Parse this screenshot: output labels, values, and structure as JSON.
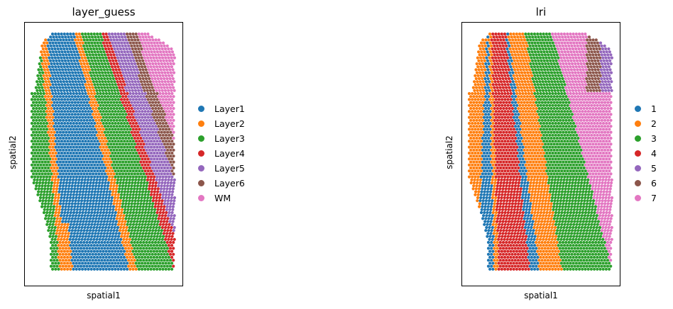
{
  "panels": [
    {
      "title": "layer_guess",
      "xlabel": "spatial1",
      "ylabel": "spatial2",
      "legend": [
        {
          "label": "Layer1",
          "color": "#1f77b4"
        },
        {
          "label": "Layer2",
          "color": "#ff7f0e"
        },
        {
          "label": "Layer3",
          "color": "#2ca02c"
        },
        {
          "label": "Layer4",
          "color": "#d62728"
        },
        {
          "label": "Layer5",
          "color": "#9467bd"
        },
        {
          "label": "Layer6",
          "color": "#8c564b"
        },
        {
          "label": "WM",
          "color": "#e377c2"
        }
      ]
    },
    {
      "title": "lri",
      "xlabel": "spatial1",
      "ylabel": "spatial2",
      "legend": [
        {
          "label": "1",
          "color": "#1f77b4"
        },
        {
          "label": "2",
          "color": "#ff7f0e"
        },
        {
          "label": "3",
          "color": "#2ca02c"
        },
        {
          "label": "4",
          "color": "#d62728"
        },
        {
          "label": "5",
          "color": "#9467bd"
        },
        {
          "label": "6",
          "color": "#8c564b"
        },
        {
          "label": "7",
          "color": "#e377c2"
        }
      ]
    }
  ],
  "chart_data": [
    {
      "type": "scatter",
      "title": "layer_guess",
      "xlabel": "spatial1",
      "ylabel": "spatial2",
      "legend_position": "right",
      "grid": false,
      "series": [
        {
          "name": "Layer1",
          "color": "#1f77b4"
        },
        {
          "name": "Layer2",
          "color": "#ff7f0e"
        },
        {
          "name": "Layer3",
          "color": "#2ca02c"
        },
        {
          "name": "Layer4",
          "color": "#d62728"
        },
        {
          "name": "Layer5",
          "color": "#9467bd"
        },
        {
          "name": "Layer6",
          "color": "#8c564b"
        },
        {
          "name": "WM",
          "color": "#e377c2"
        }
      ]
    },
    {
      "type": "scatter",
      "title": "lri",
      "xlabel": "spatial1",
      "ylabel": "spatial2",
      "legend_position": "right",
      "grid": false,
      "series": [
        {
          "name": "1",
          "color": "#1f77b4"
        },
        {
          "name": "2",
          "color": "#ff7f0e"
        },
        {
          "name": "3",
          "color": "#2ca02c"
        },
        {
          "name": "4",
          "color": "#d62728"
        },
        {
          "name": "5",
          "color": "#9467bd"
        },
        {
          "name": "6",
          "color": "#8c564b"
        },
        {
          "name": "7",
          "color": "#e377c2"
        }
      ]
    }
  ]
}
